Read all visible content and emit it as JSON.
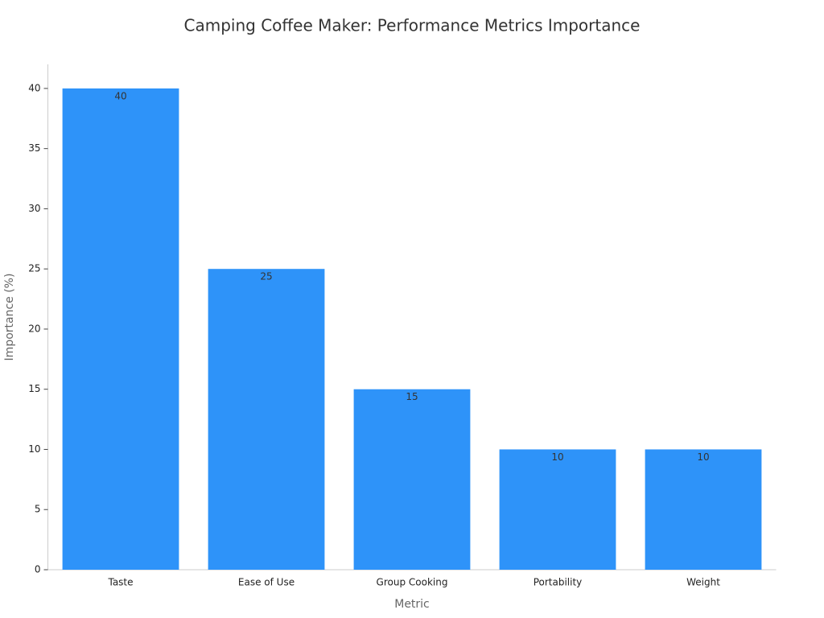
{
  "chart_data": {
    "type": "bar",
    "title": "Camping Coffee Maker: Performance Metrics Importance",
    "x_label": "Metric",
    "y_label": "Importance (%)",
    "categories": [
      "Taste",
      "Ease of Use",
      "Group Cooking",
      "Portability",
      "Weight"
    ],
    "values": [
      40,
      25,
      15,
      10,
      10
    ],
    "color": "#2e93f9",
    "ylim": [
      0,
      42
    ],
    "yticks": [
      0,
      5,
      10,
      15,
      20,
      25,
      30,
      35,
      40
    ],
    "grid": false
  }
}
